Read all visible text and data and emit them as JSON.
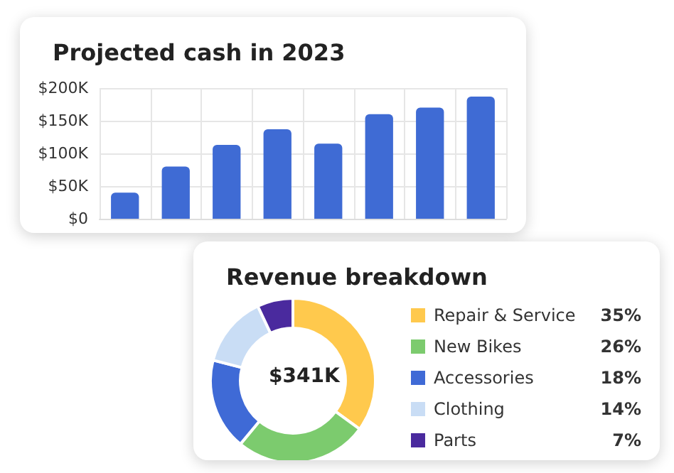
{
  "chart_data": [
    {
      "type": "bar",
      "title": "Projected cash in 2023",
      "categories": [
        null,
        null,
        null,
        null,
        null,
        null,
        null,
        null
      ],
      "values": [
        40000,
        80000,
        113000,
        137000,
        115000,
        160000,
        170000,
        187000
      ],
      "color": "#3f6bd4",
      "ylim": [
        0,
        200000
      ],
      "yticks": [
        {
          "value": 0,
          "label": "$0"
        },
        {
          "value": 50000,
          "label": "$50K"
        },
        {
          "value": 100000,
          "label": "$100K"
        },
        {
          "value": 150000,
          "label": "$150K"
        },
        {
          "value": 200000,
          "label": "$200K"
        }
      ],
      "grid": true
    },
    {
      "type": "donut",
      "title": "Revenue breakdown",
      "categories": [
        "Repair & Service",
        "New Bikes",
        "Accessories",
        "Clothing",
        "Parts"
      ],
      "values": [
        35,
        26,
        18,
        14,
        7
      ],
      "colors": [
        "#ffc94d",
        "#7ccb6e",
        "#3f6ad6",
        "#c9ddf5",
        "#4a2a9e"
      ],
      "annotations": [
        "$341K"
      ],
      "legend": "right",
      "value_labels": [
        "35%",
        "26%",
        "18%",
        "14%",
        "7%"
      ]
    }
  ]
}
